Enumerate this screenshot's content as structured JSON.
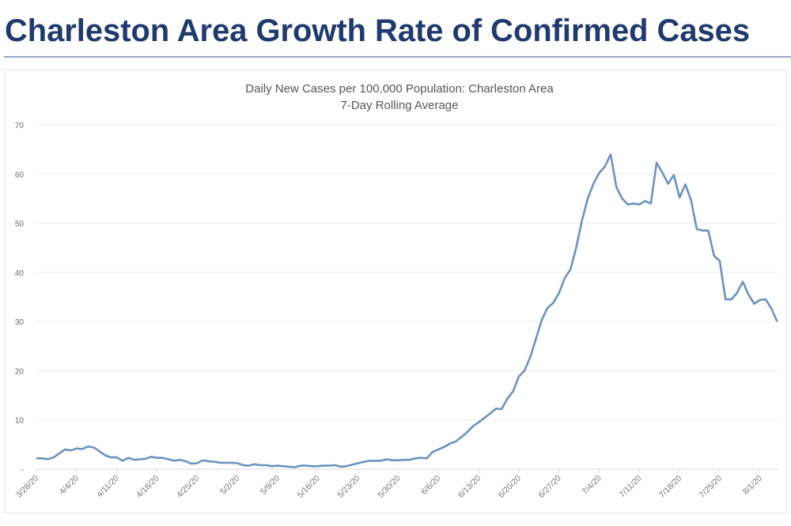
{
  "page": {
    "heading": "Charleston Area Growth Rate of Confirmed Cases",
    "heading_color": "#1f3a6e"
  },
  "chart_data": {
    "type": "line",
    "title": "Daily New Cases per 100,000  Population: Charleston Area",
    "subtitle": "7-Day Rolling Average",
    "xlabel": "",
    "ylabel": "",
    "x_start": "3/28/20",
    "x_end": "8/4/20",
    "x_tick_labels": [
      "3/28/20",
      "4/4/20",
      "4/11/20",
      "4/18/20",
      "4/25/20",
      "5/2/20",
      "5/9/20",
      "5/16/20",
      "5/23/20",
      "5/30/20",
      "6/6/20",
      "6/13/20",
      "6/20/20",
      "6/27/20",
      "7/4/20",
      "7/11/20",
      "7/18/20",
      "7/25/20",
      "8/1/20"
    ],
    "y_ticks": [
      0,
      10,
      20,
      30,
      40,
      50,
      60,
      70
    ],
    "y_tick_labels": [
      "-",
      "10",
      "20",
      "30",
      "40",
      "50",
      "60",
      "70"
    ],
    "ylim": [
      0,
      70
    ],
    "grid": "horizontal",
    "legend": "none",
    "line_color": "#6b93be",
    "series": [
      {
        "values": [
          2.2,
          2.2,
          2.0,
          2.4,
          3.2,
          4.0,
          3.8,
          4.2,
          4.1,
          4.6,
          4.4,
          3.6,
          2.8,
          2.4,
          2.4,
          1.7,
          2.3,
          1.9,
          2.0,
          2.1,
          2.5,
          2.3,
          2.3,
          2.0,
          1.7,
          1.9,
          1.6,
          1.1,
          1.2,
          1.8,
          1.6,
          1.5,
          1.3,
          1.3,
          1.3,
          1.2,
          0.8,
          0.7,
          1.0,
          0.8,
          0.8,
          0.6,
          0.7,
          0.6,
          0.5,
          0.4,
          0.7,
          0.7,
          0.6,
          0.6,
          0.7,
          0.7,
          0.8,
          0.5,
          0.6,
          0.9,
          1.2,
          1.5,
          1.7,
          1.7,
          1.7,
          2.0,
          1.8,
          1.8,
          1.9,
          1.9,
          2.2,
          2.3,
          2.2,
          3.5,
          4.0,
          4.5,
          5.2,
          5.6,
          6.5,
          7.5,
          8.7,
          9.5,
          10.4,
          11.3,
          12.3,
          12.2,
          14.3,
          15.8,
          18.8,
          20.0,
          22.8,
          26.5,
          30.3,
          32.8,
          33.8,
          35.8,
          38.8,
          40.6,
          45.0,
          50.5,
          55.0,
          58.0,
          60.2,
          61.5,
          64.0,
          57.3,
          55.0,
          53.8,
          54.0,
          53.8,
          54.5,
          54.0,
          62.3,
          60.3,
          58.0,
          59.8,
          55.2,
          57.9,
          54.7,
          48.8,
          48.5,
          48.5,
          43.4,
          42.3,
          34.5,
          34.5,
          35.8,
          38.1,
          35.5,
          33.6,
          34.4,
          34.5,
          32.6,
          30.0
        ]
      }
    ]
  }
}
